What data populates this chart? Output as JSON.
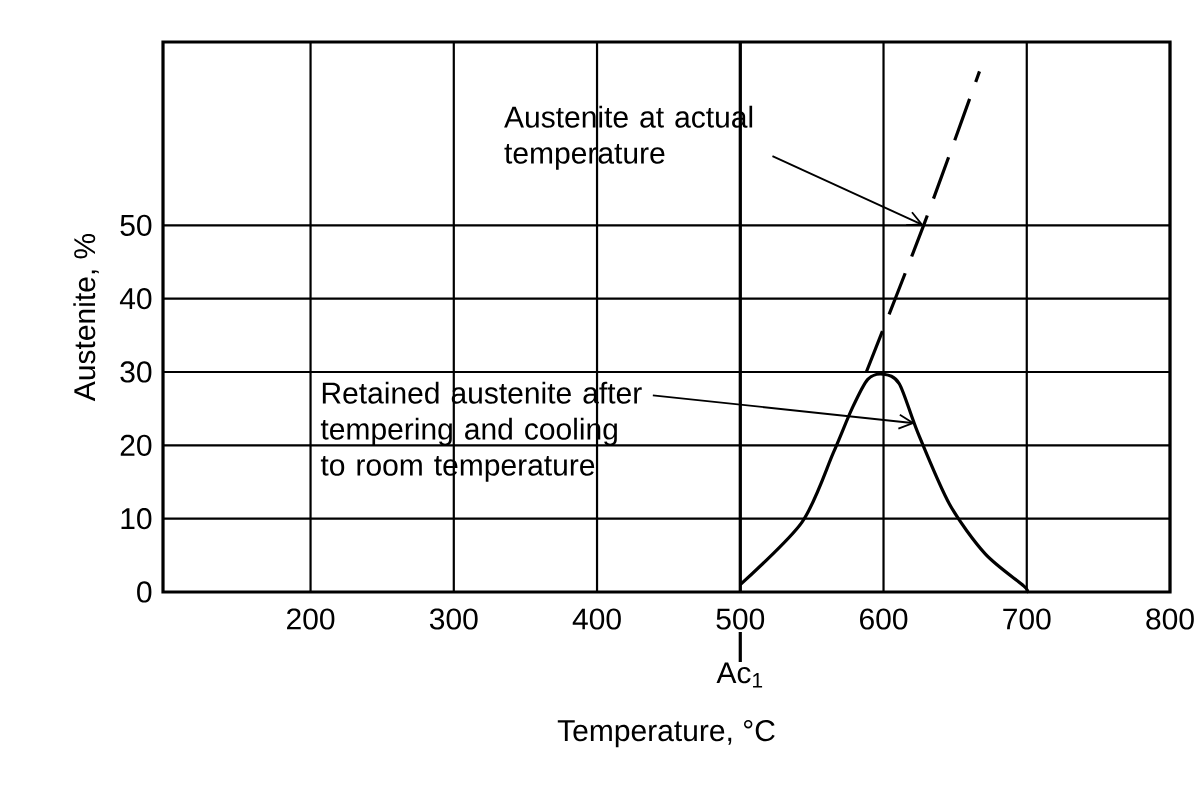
{
  "chart_data": {
    "type": "line",
    "xlabel": "Temperature, °C",
    "ylabel": "Austenite, %",
    "xlim": [
      97,
      800
    ],
    "ylim": [
      0,
      75
    ],
    "xticks": [
      200,
      300,
      400,
      500,
      600,
      700,
      800
    ],
    "yticks": [
      0,
      10,
      20,
      30,
      40,
      50
    ],
    "grid": true,
    "marker": "none",
    "series": [
      {
        "color": "#000000",
        "line_style": "solid",
        "x": [
          500,
          543,
          565,
          578,
          589,
          600,
          611,
          624,
          646,
          671,
          698,
          700
        ],
        "values": [
          1,
          9.5,
          19,
          25,
          29,
          29.7,
          28.4,
          21.7,
          12,
          5.2,
          0.8,
          0
        ]
      },
      {
        "color": "#000000",
        "line_style": "dashed",
        "x": [
          588,
          628,
          667
        ],
        "values": [
          30,
          50,
          71
        ]
      }
    ],
    "ref_lines": [
      {
        "axis": "x",
        "value": 500,
        "label": "Ac$_{1}$",
        "color": "#000000"
      }
    ],
    "annotations": [
      {
        "text": "Austenite at actual temperature",
        "x": 628,
        "y": 50
      },
      {
        "text": "Retained austenite after tempering and cooling to room temperature",
        "x": 622,
        "y": 23
      }
    ]
  }
}
